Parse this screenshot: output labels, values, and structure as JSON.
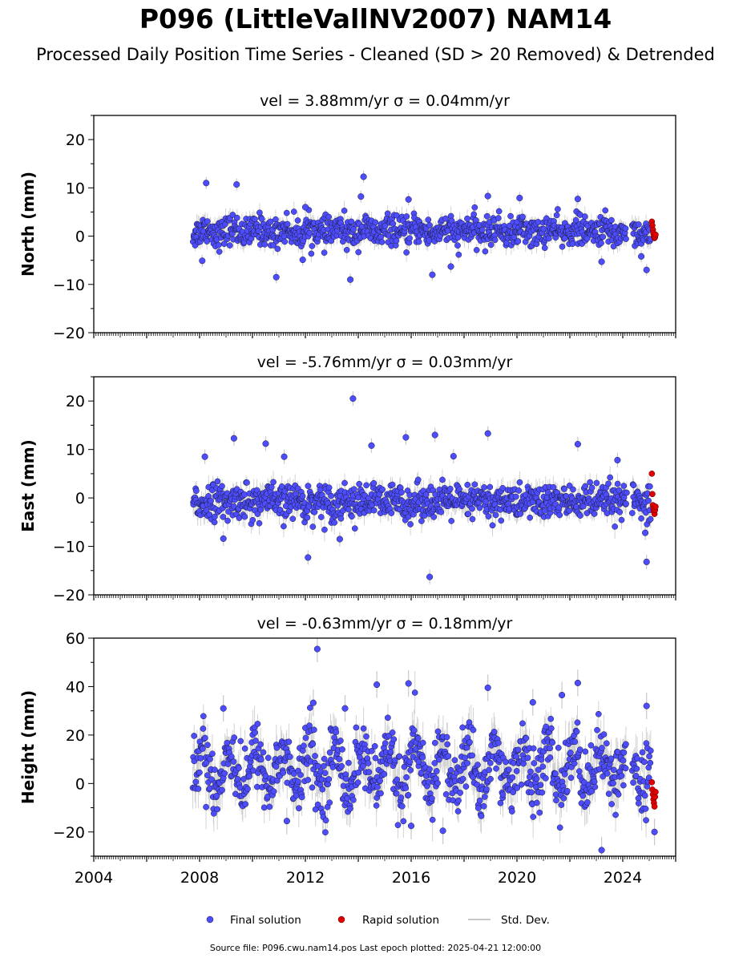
{
  "title": "P096 (LittleVallNV2007) NAM14",
  "subtitle": "Processed Daily Position Time Series - Cleaned (SD > 20 Removed) & Detrended",
  "footer": "Source file: P096.cwu.nam14.pos  Last epoch plotted: 2025-04-21 12:00:00",
  "colors": {
    "final": "#4d4dff",
    "rapid": "#e00000",
    "stddev": "#c8c8c8"
  },
  "chart_data": [
    {
      "type": "scatter",
      "panel_title": "vel = 3.88mm/yr   σ = 0.04mm/yr",
      "ylabel": "North (mm)",
      "xlim": [
        2004,
        2026
      ],
      "ylim": [
        -20,
        25
      ],
      "yticks": [
        -20,
        -10,
        0,
        10,
        20
      ],
      "ytick_labels": [
        "−20",
        "−10",
        "0",
        "10",
        "20"
      ],
      "xtick_labels_shown": false,
      "data_span": [
        2007.75,
        2025.3
      ],
      "rapid_span": [
        2025.05,
        2025.3
      ],
      "band_halfwidth": 2.5,
      "outliers": [
        {
          "x": 2008.25,
          "y": 11
        },
        {
          "x": 2009.4,
          "y": 10.7
        },
        {
          "x": 2013.7,
          "y": -9
        },
        {
          "x": 2014.2,
          "y": 12.3
        },
        {
          "x": 2014.1,
          "y": 8.2
        },
        {
          "x": 2010.9,
          "y": -8.5
        },
        {
          "x": 2016.8,
          "y": -8
        },
        {
          "x": 2017.5,
          "y": -6.3
        },
        {
          "x": 2018.9,
          "y": 8.3
        },
        {
          "x": 2020.1,
          "y": 7.9
        },
        {
          "x": 2022.3,
          "y": 7.7
        },
        {
          "x": 2024.9,
          "y": -7
        },
        {
          "x": 2008.1,
          "y": -5.1
        },
        {
          "x": 2012.0,
          "y": 6.0
        },
        {
          "x": 2015.9,
          "y": 7.6
        },
        {
          "x": 2024.7,
          "y": -4.2
        },
        {
          "x": 2023.2,
          "y": -5.3
        },
        {
          "x": 2011.9,
          "y": -4.9
        }
      ],
      "rapid_points": [
        {
          "x": 2025.1,
          "y": 3.0
        },
        {
          "x": 2025.12,
          "y": 2.2
        },
        {
          "x": 2025.14,
          "y": 1.3
        },
        {
          "x": 2025.16,
          "y": 0.6
        },
        {
          "x": 2025.18,
          "y": 0.0
        },
        {
          "x": 2025.2,
          "y": -0.4
        },
        {
          "x": 2025.22,
          "y": -0.2
        },
        {
          "x": 2025.24,
          "y": 0.3
        }
      ]
    },
    {
      "type": "scatter",
      "panel_title": "vel = -5.76mm/yr   σ = 0.03mm/yr",
      "ylabel": "East (mm)",
      "xlim": [
        2004,
        2026
      ],
      "ylim": [
        -20,
        25
      ],
      "yticks": [
        -20,
        -10,
        0,
        10,
        20
      ],
      "ytick_labels": [
        "−20",
        "−10",
        "0",
        "10",
        "20"
      ],
      "xtick_labels_shown": false,
      "data_span": [
        2007.75,
        2025.3
      ],
      "rapid_span": [
        2025.05,
        2025.3
      ],
      "band_halfwidth": 3.0,
      "outliers": [
        {
          "x": 2013.8,
          "y": 20.5
        },
        {
          "x": 2009.3,
          "y": 12.3
        },
        {
          "x": 2010.5,
          "y": 11.2
        },
        {
          "x": 2015.8,
          "y": 12.5
        },
        {
          "x": 2016.9,
          "y": 13
        },
        {
          "x": 2018.9,
          "y": 13.3
        },
        {
          "x": 2022.3,
          "y": 11.1
        },
        {
          "x": 2012.1,
          "y": -12.3
        },
        {
          "x": 2016.7,
          "y": -16.3
        },
        {
          "x": 2024.9,
          "y": -13.2
        },
        {
          "x": 2008.2,
          "y": 8.5
        },
        {
          "x": 2008.9,
          "y": -8.4
        },
        {
          "x": 2013.3,
          "y": -8.5
        },
        {
          "x": 2014.5,
          "y": 10.8
        },
        {
          "x": 2011.2,
          "y": 8.5
        },
        {
          "x": 2017.6,
          "y": 8.6
        },
        {
          "x": 2023.8,
          "y": 7.8
        },
        {
          "x": 2024.85,
          "y": -7.2
        }
      ],
      "rapid_points": [
        {
          "x": 2025.1,
          "y": 5.0
        },
        {
          "x": 2025.12,
          "y": 0.8
        },
        {
          "x": 2025.14,
          "y": -1.5
        },
        {
          "x": 2025.16,
          "y": -2.2
        },
        {
          "x": 2025.18,
          "y": -2.8
        },
        {
          "x": 2025.2,
          "y": -3.3
        },
        {
          "x": 2025.22,
          "y": -2.5
        },
        {
          "x": 2025.24,
          "y": -1.8
        }
      ]
    },
    {
      "type": "scatter",
      "panel_title": "vel = -0.63mm/yr   σ = 0.18mm/yr",
      "ylabel": "Height (mm)",
      "xlim": [
        2004,
        2026
      ],
      "ylim": [
        -30,
        60
      ],
      "yticks": [
        -20,
        0,
        20,
        40,
        60
      ],
      "ytick_labels": [
        "−20",
        "0",
        "20",
        "40",
        "60"
      ],
      "xticks": [
        2004,
        2008,
        2012,
        2016,
        2020,
        2024
      ],
      "xtick_labels": [
        "2004",
        "2008",
        "2012",
        "2016",
        "2020",
        "2024"
      ],
      "xtick_labels_shown": true,
      "data_span": [
        2007.75,
        2025.3
      ],
      "rapid_span": [
        2025.05,
        2025.3
      ],
      "band_halfwidth": 11,
      "outliers": [
        {
          "x": 2012.45,
          "y": 55.5
        },
        {
          "x": 2014.7,
          "y": 40.8
        },
        {
          "x": 2015.9,
          "y": 41.3
        },
        {
          "x": 2018.9,
          "y": 39.5
        },
        {
          "x": 2022.3,
          "y": 41.5
        },
        {
          "x": 2023.2,
          "y": -27.5
        },
        {
          "x": 2017.2,
          "y": -19.5
        },
        {
          "x": 2016.0,
          "y": -17.5
        },
        {
          "x": 2024.9,
          "y": 32
        },
        {
          "x": 2008.9,
          "y": 31
        },
        {
          "x": 2012.3,
          "y": 33.3
        },
        {
          "x": 2013.5,
          "y": 31.0
        },
        {
          "x": 2021.7,
          "y": 36.5
        },
        {
          "x": 2025.2,
          "y": -20
        },
        {
          "x": 2011.3,
          "y": -15.5
        },
        {
          "x": 2020.6,
          "y": 33.5
        }
      ],
      "rapid_points": [
        {
          "x": 2025.1,
          "y": 0.5
        },
        {
          "x": 2025.12,
          "y": -2.5
        },
        {
          "x": 2025.14,
          "y": -4.5
        },
        {
          "x": 2025.16,
          "y": -6.5
        },
        {
          "x": 2025.18,
          "y": -8.0
        },
        {
          "x": 2025.2,
          "y": -9.5
        },
        {
          "x": 2025.22,
          "y": -5.5
        },
        {
          "x": 2025.24,
          "y": -3.5
        }
      ]
    }
  ],
  "legend": {
    "entries": [
      {
        "label": "Final solution",
        "kind": "final"
      },
      {
        "label": "Rapid solution",
        "kind": "rapid"
      },
      {
        "label": "Std. Dev.",
        "kind": "stddev"
      }
    ]
  }
}
